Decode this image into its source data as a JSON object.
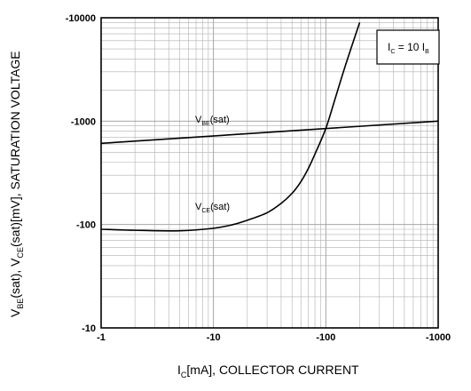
{
  "chart_data": {
    "type": "line",
    "x_scale": "log",
    "y_scale": "log",
    "xlim": [
      -1,
      -1000
    ],
    "ylim": [
      -10,
      -10000
    ],
    "grid": true,
    "x_ticks": [
      "-1",
      "-10",
      "-100",
      "-1000"
    ],
    "y_ticks": [
      "-10",
      "-100",
      "-1000",
      "-10000"
    ],
    "xlabel": {
      "main": "I",
      "sub": "C",
      "rest": "[mA], COLLECTOR CURRENT"
    },
    "ylabel": {
      "p1": "V",
      "s1": "BE",
      "p2": "(sat),  V",
      "s2": "CE",
      "p3": "(sat)[mV], SATURATION VOLTAGE"
    },
    "legend_box": {
      "p1": "I",
      "s1": "C",
      "p2": " = 10 I",
      "s2": "B"
    },
    "series": [
      {
        "name": "VBE(sat)",
        "label": {
          "main": "V",
          "sub": "BE",
          "rest": "(sat)"
        },
        "x": [
          -1,
          -1000
        ],
        "y": [
          -610,
          -1000
        ]
      },
      {
        "name": "VCE(sat)",
        "label": {
          "main": "V",
          "sub": "CE",
          "rest": "(sat)"
        },
        "x": [
          -1,
          -2,
          -5,
          -10,
          -15,
          -20,
          -30,
          -40,
          -50,
          -60,
          -70,
          -80,
          -100,
          -120,
          -150,
          -200
        ],
        "y": [
          -90,
          -88,
          -87,
          -92,
          -100,
          -110,
          -130,
          -160,
          -200,
          -260,
          -350,
          -480,
          -850,
          -1600,
          -3500,
          -9000
        ]
      }
    ]
  }
}
